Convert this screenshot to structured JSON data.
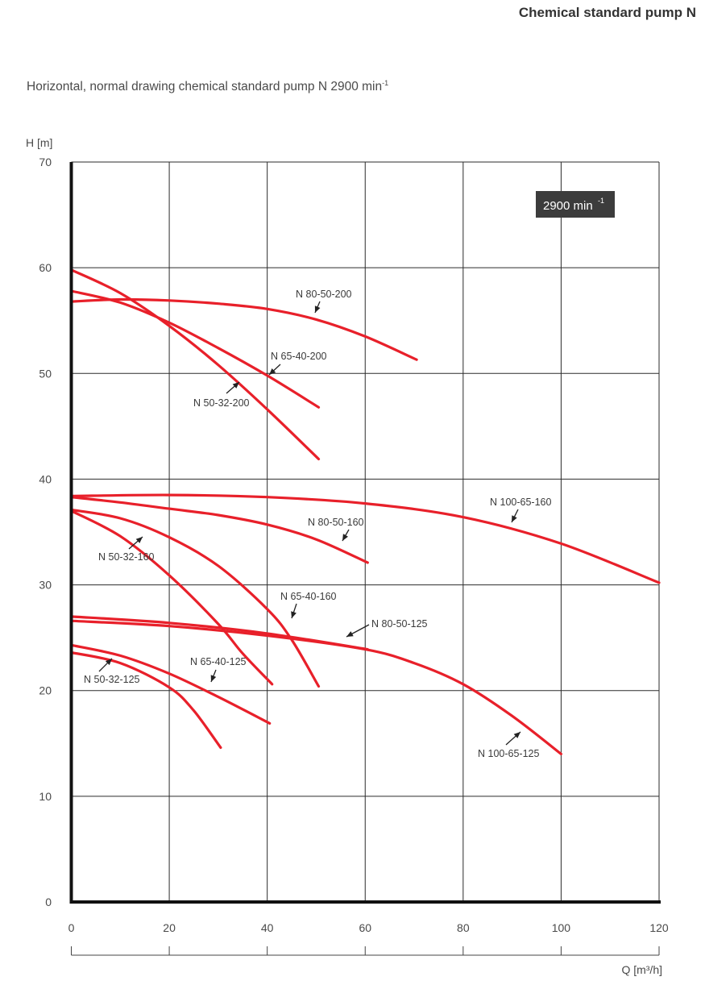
{
  "header": {
    "doc_title": "Chemical standard pump N",
    "subtitle": "Horizontal, normal drawing chemical standard pump N 2900 min",
    "subtitle_sup": "-1"
  },
  "colors": {
    "curve": "#e8202a",
    "grid": "#2b2b2b",
    "badge_bg": "#3c3c3c",
    "badge_text": "#ffffff"
  },
  "chart_data": {
    "type": "line",
    "ylabel": "H [m]",
    "xlabel": "Q [m³/h]",
    "xlim": [
      0,
      120
    ],
    "ylim": [
      0,
      70
    ],
    "xticks": [
      "0",
      "20",
      "40",
      "60",
      "80",
      "100",
      "120"
    ],
    "yticks": [
      "0",
      "10",
      "20",
      "30",
      "40",
      "50",
      "60",
      "70"
    ],
    "grid": true,
    "badge": {
      "text": "2900 min",
      "sup": "-1"
    },
    "series": [
      {
        "name": "N 80-50-200",
        "x": [
          0,
          10,
          20,
          30,
          40,
          50,
          60,
          70.5
        ],
        "y": [
          56.8,
          57.0,
          56.9,
          56.6,
          56.1,
          55.1,
          53.5,
          51.3
        ]
      },
      {
        "name": "N 65-40-200",
        "x": [
          0,
          10,
          20,
          30,
          40,
          50.5
        ],
        "y": [
          57.8,
          56.7,
          54.8,
          52.4,
          49.8,
          46.8
        ]
      },
      {
        "name": "N 50-32-200",
        "x": [
          0,
          10,
          20,
          30,
          40,
          50.5
        ],
        "y": [
          59.8,
          57.6,
          54.5,
          50.8,
          46.6,
          41.9
        ]
      },
      {
        "name": "N 100-65-160",
        "x": [
          0,
          20,
          40,
          60,
          80,
          100,
          120
        ],
        "y": [
          38.4,
          38.5,
          38.3,
          37.7,
          36.4,
          33.9,
          30.2
        ]
      },
      {
        "name": "N 80-50-160",
        "x": [
          0,
          10,
          20,
          30,
          40,
          50,
          60.5
        ],
        "y": [
          38.3,
          37.8,
          37.2,
          36.6,
          35.7,
          34.3,
          32.1
        ]
      },
      {
        "name": "N 65-40-160",
        "x": [
          0,
          10,
          20,
          30,
          40,
          45,
          50.5
        ],
        "y": [
          37.1,
          36.3,
          34.5,
          31.8,
          27.7,
          24.8,
          20.4
        ]
      },
      {
        "name": "N 50-32-160",
        "x": [
          0,
          10,
          20,
          30,
          35,
          41
        ],
        "y": [
          37.0,
          34.6,
          30.9,
          26.3,
          23.5,
          20.6
        ]
      },
      {
        "name": "N 80-50-125",
        "x": [
          0,
          20,
          40,
          60.5
        ],
        "y": [
          27.0,
          26.4,
          25.4,
          23.9
        ]
      },
      {
        "name": "N 100-65-125",
        "x": [
          0,
          20,
          40,
          60,
          70,
          80,
          90,
          100
        ],
        "y": [
          26.6,
          26.1,
          25.2,
          23.9,
          22.6,
          20.6,
          17.6,
          14.0
        ]
      },
      {
        "name": "N 65-40-125",
        "x": [
          0,
          10,
          20,
          30,
          40.5
        ],
        "y": [
          24.3,
          23.3,
          21.6,
          19.4,
          16.9
        ]
      },
      {
        "name": "N 50-32-125",
        "x": [
          0,
          10,
          20,
          25,
          30.5
        ],
        "y": [
          23.6,
          22.6,
          20.3,
          18.1,
          14.6
        ]
      }
    ]
  }
}
